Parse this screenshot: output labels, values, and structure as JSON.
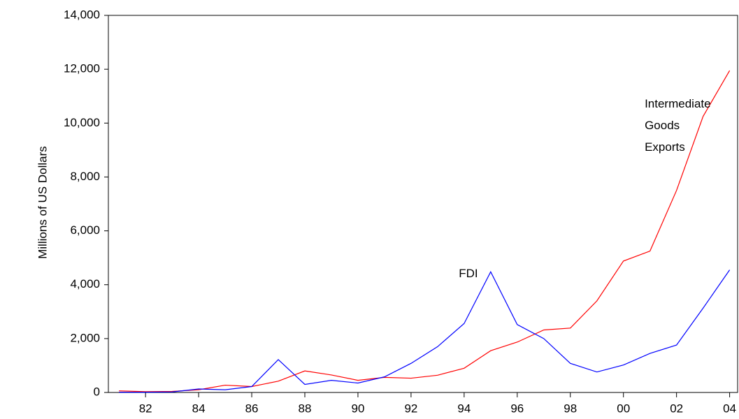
{
  "chart_data": {
    "type": "line",
    "y_label": "Millions of US Dollars",
    "x": [
      1981,
      1982,
      1983,
      1984,
      1985,
      1986,
      1987,
      1988,
      1989,
      1990,
      1991,
      1992,
      1993,
      1994,
      1995,
      1996,
      1997,
      1998,
      1999,
      2000,
      2001,
      2002,
      2003,
      2004
    ],
    "series": [
      {
        "color": "#ff0000",
        "values": [
          60,
          30,
          40,
          100,
          270,
          220,
          420,
          800,
          650,
          450,
          560,
          530,
          640,
          900,
          1550,
          1870,
          2320,
          2390,
          3400,
          4880,
          5250,
          7500,
          10250,
          11950
        ]
      },
      {
        "color": "#0000ff",
        "values": [
          10,
          10,
          20,
          130,
          100,
          220,
          1220,
          300,
          450,
          350,
          580,
          1080,
          1700,
          2560,
          4480,
          2520,
          2000,
          1080,
          760,
          1020,
          1450,
          1760,
          3130,
          4550
        ]
      }
    ],
    "annotations": [
      {
        "lines": [
          "FDI"
        ],
        "x": 1993.8,
        "y": 4400
      },
      {
        "lines": [
          "Intermediate",
          "Goods",
          "Exports"
        ],
        "x": 2000.8,
        "y": 10700
      }
    ],
    "xlim": [
      1980.6,
      2004.3
    ],
    "xticks": [
      {
        "value": 1982,
        "label": "82"
      },
      {
        "value": 1984,
        "label": "84"
      },
      {
        "value": 1986,
        "label": "86"
      },
      {
        "value": 1988,
        "label": "88"
      },
      {
        "value": 1990,
        "label": "90"
      },
      {
        "value": 1992,
        "label": "92"
      },
      {
        "value": 1994,
        "label": "94"
      },
      {
        "value": 1996,
        "label": "96"
      },
      {
        "value": 1998,
        "label": "98"
      },
      {
        "value": 2000,
        "label": "00"
      },
      {
        "value": 2002,
        "label": "02"
      },
      {
        "value": 2004,
        "label": "04"
      }
    ],
    "ylim": [
      0,
      14000
    ],
    "yticks": [
      0,
      {
        "value": 2000,
        "label": "2,000"
      },
      {
        "value": 4000,
        "label": "4,000"
      },
      {
        "value": 6000,
        "label": "6,000"
      },
      {
        "value": 8000,
        "label": "8,000"
      },
      {
        "value": 10000,
        "label": "10,000"
      },
      {
        "value": 12000,
        "label": "12,000"
      },
      {
        "value": 14000,
        "label": "14,000"
      }
    ]
  }
}
